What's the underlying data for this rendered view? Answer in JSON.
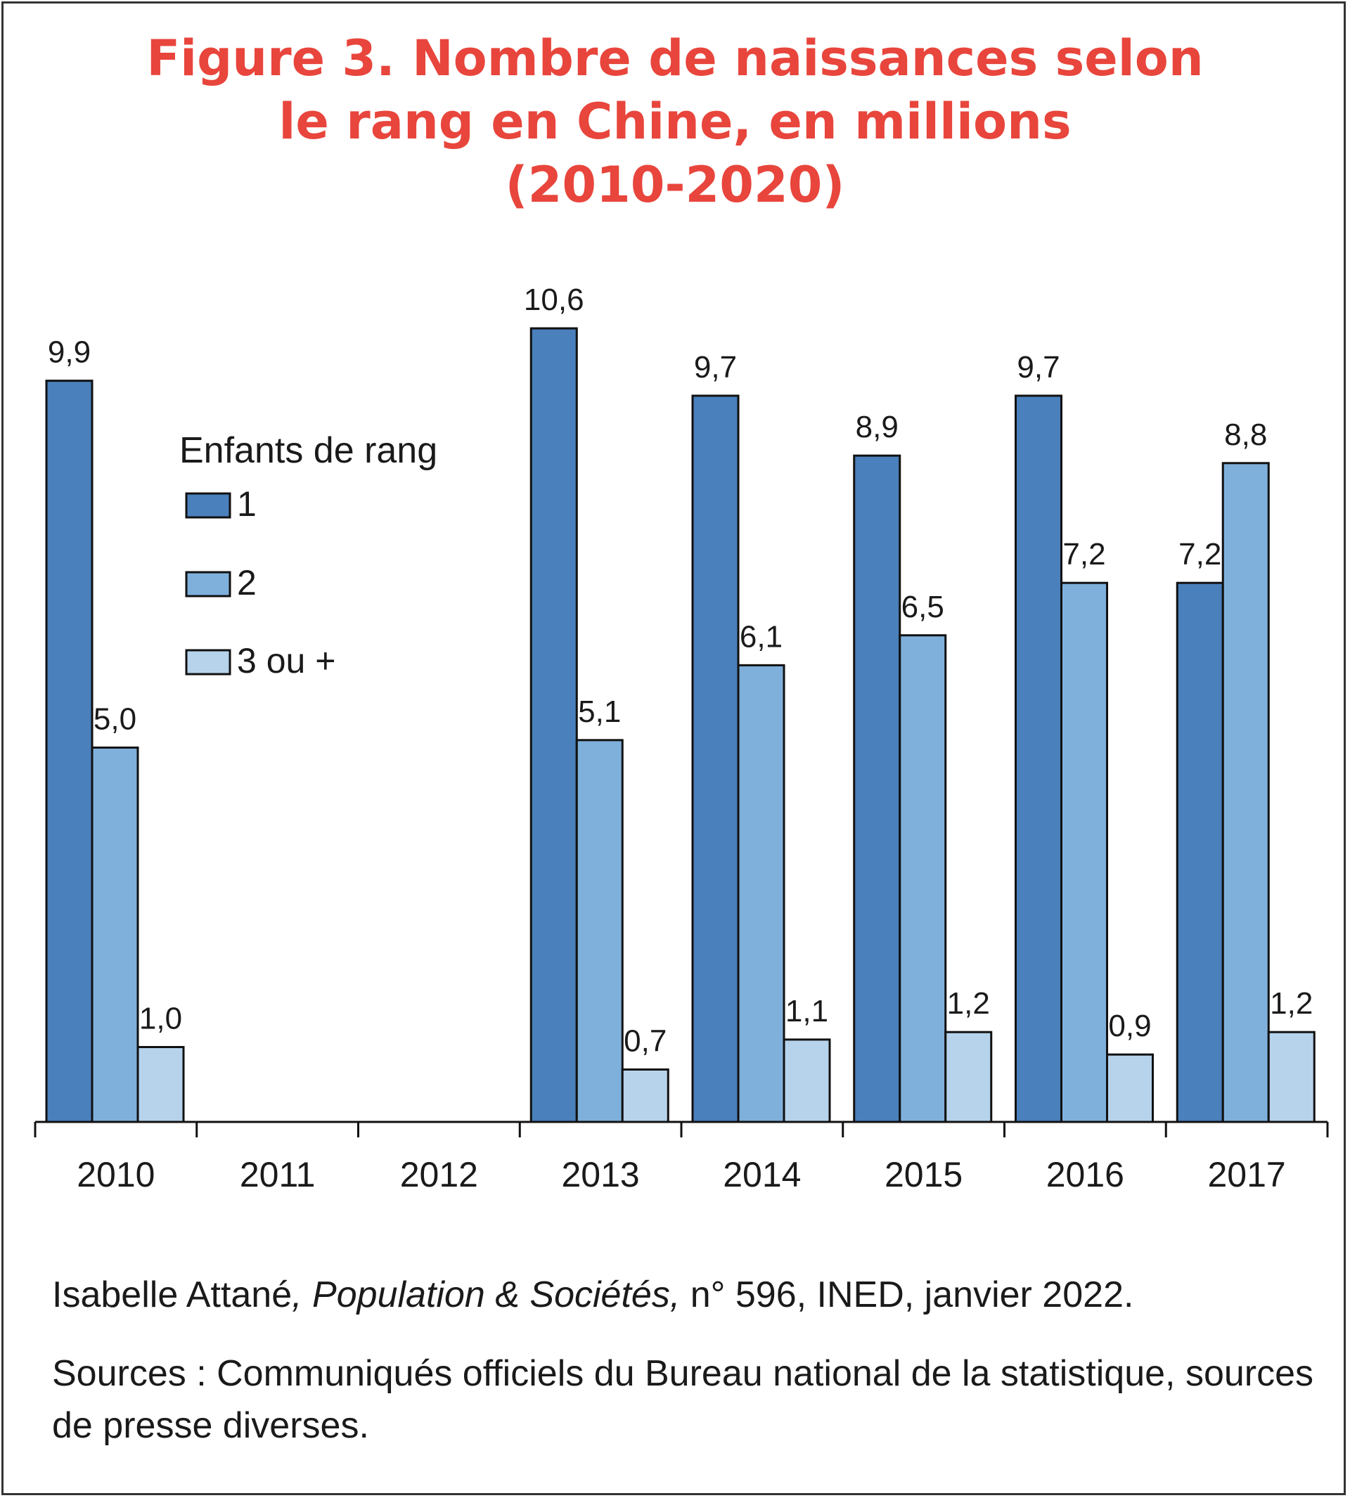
{
  "title_lines": [
    "Figure 3. Nombre de naissances selon",
    "le rang en Chine, en millions",
    "(2010-2020)"
  ],
  "chart_data": {
    "type": "bar",
    "categories": [
      "2010",
      "2011",
      "2012",
      "2013",
      "2014",
      "2015",
      "2016",
      "2017"
    ],
    "series": [
      {
        "name": "1",
        "values": [
          9.9,
          null,
          null,
          10.6,
          9.7,
          8.9,
          9.7,
          7.2
        ],
        "labels": [
          "9,9",
          "",
          "",
          "10,6",
          "9,7",
          "8,9",
          "9,7",
          "7,2"
        ]
      },
      {
        "name": "2",
        "values": [
          5.0,
          null,
          null,
          5.1,
          6.1,
          6.5,
          7.2,
          8.8
        ],
        "labels": [
          "5,0",
          "",
          "",
          "5,1",
          "6,1",
          "6,5",
          "7,2",
          "8,8"
        ]
      },
      {
        "name": "3 ou +",
        "values": [
          1.0,
          null,
          null,
          0.7,
          1.1,
          1.2,
          0.9,
          1.2
        ],
        "labels": [
          "1,0",
          "",
          "",
          "0,7",
          "1,1",
          "1,2",
          "0,9",
          "1,2"
        ]
      }
    ],
    "legend_title": "Enfants de rang",
    "legend_position": "upper-left",
    "ylim": [
      0,
      12
    ],
    "grid": false,
    "colors": [
      "#4a80bb",
      "#7fb0dc",
      "#b7d3ec"
    ]
  },
  "footer": {
    "credit_author": "Isabelle Attané",
    "credit_publication": ", Population & Sociétés,",
    "credit_rest": " n° 596, INED, janvier 2022.",
    "sources": "Sources : Communiqués officiels du Bureau national de la statistique, sources de presse diverses."
  }
}
